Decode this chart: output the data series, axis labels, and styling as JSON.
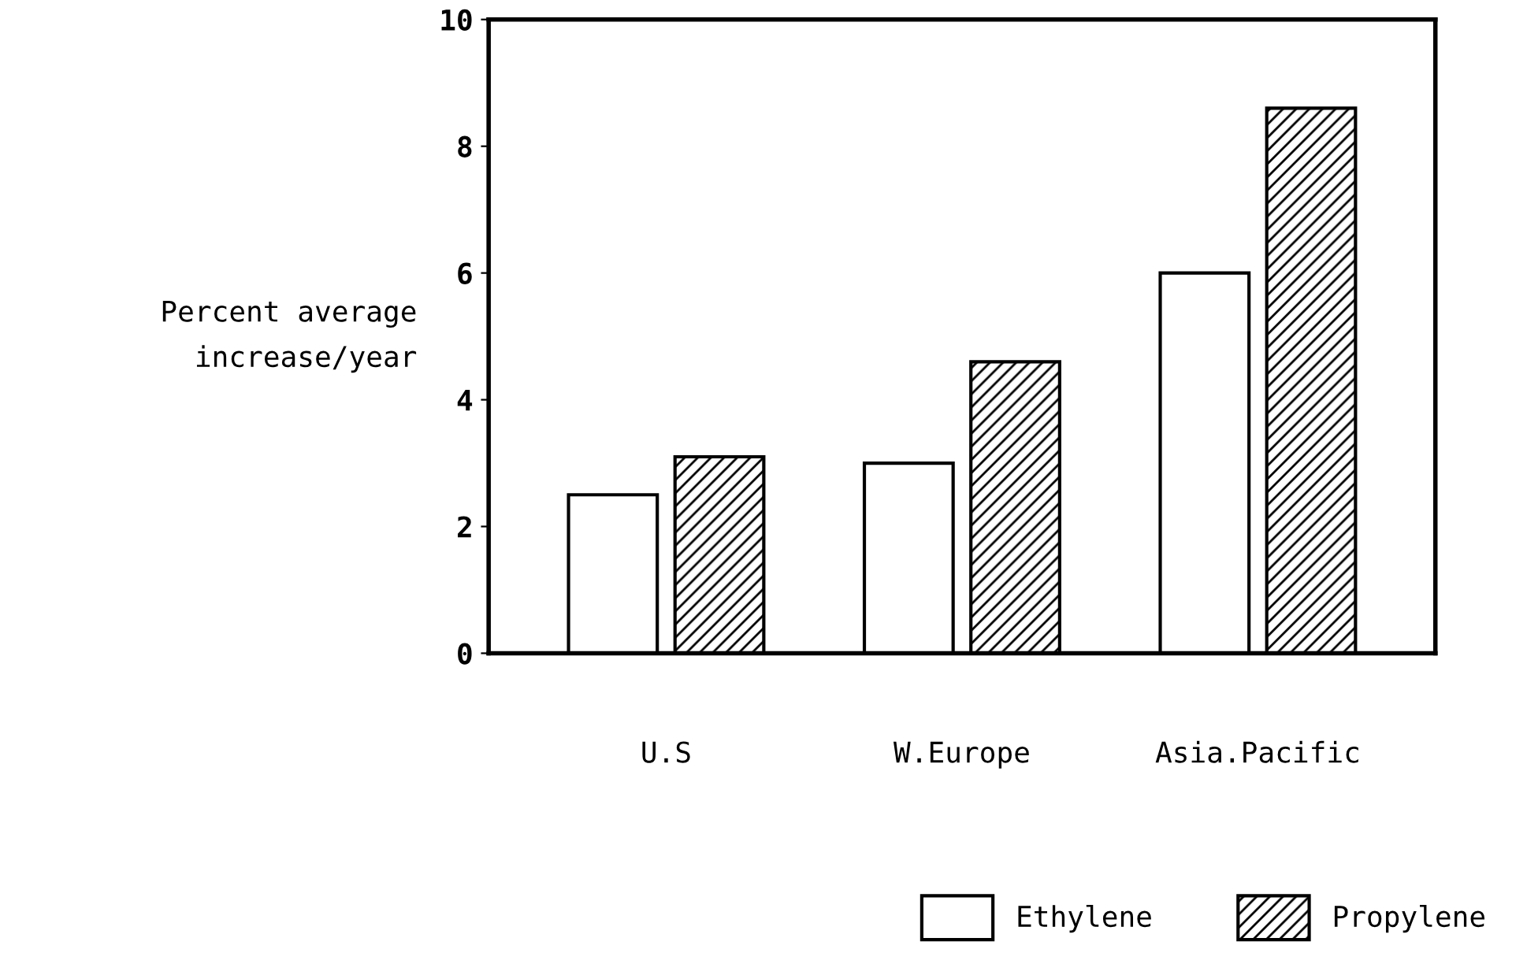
{
  "chart_data": {
    "type": "bar",
    "ylabel": "Percent average\nincrease/year",
    "categories": [
      "U.S",
      "W.Europe",
      "Asia.Pacific"
    ],
    "series": [
      {
        "name": "Ethylene",
        "color": "#ffffff",
        "values": [
          2.5,
          3.0,
          6.0
        ]
      },
      {
        "name": "Propylene",
        "color": "#000000",
        "values": [
          3.1,
          4.6,
          8.6
        ]
      }
    ],
    "ylim": [
      0,
      10
    ],
    "yticks": [
      0,
      2,
      4,
      6,
      8,
      10
    ],
    "grid": false,
    "legend": "bottom"
  }
}
